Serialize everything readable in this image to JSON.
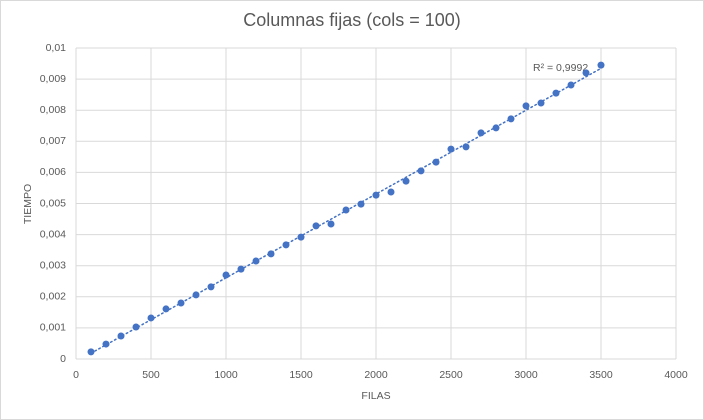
{
  "chart_data": {
    "type": "scatter",
    "title": "Columnas fijas (cols = 100)",
    "x_label": "FILAS",
    "y_label": "TIEMPO",
    "annotation": "R² = 0,9992",
    "trendline": "linear",
    "color": "#4472c4",
    "grid": true,
    "x": [
      100,
      200,
      300,
      400,
      500,
      600,
      700,
      800,
      900,
      1000,
      1100,
      1200,
      1300,
      1400,
      1500,
      1600,
      1700,
      1800,
      1900,
      2000,
      2100,
      2200,
      2300,
      2400,
      2500,
      2600,
      2700,
      2800,
      2900,
      3000,
      3100,
      3200,
      3300,
      3400,
      3500
    ],
    "values": [
      0.00023,
      0.00048,
      0.00074,
      0.00103,
      0.00132,
      0.00161,
      0.0018,
      0.00206,
      0.00232,
      0.0027,
      0.00289,
      0.00315,
      0.00338,
      0.00367,
      0.00392,
      0.00428,
      0.00434,
      0.00479,
      0.00498,
      0.00527,
      0.00537,
      0.00572,
      0.00605,
      0.00633,
      0.00675,
      0.00682,
      0.00727,
      0.00743,
      0.00772,
      0.00814,
      0.00823,
      0.00855,
      0.00881,
      0.0092,
      0.00945
    ],
    "xlim": [
      0,
      4000
    ],
    "xticks": [
      0,
      500,
      1000,
      1500,
      2000,
      2500,
      3000,
      3500,
      4000
    ],
    "ylim": [
      0,
      0.01
    ],
    "yticks": [
      0,
      {
        "value": 0.001,
        "label": "0,001"
      },
      {
        "value": 0.002,
        "label": "0,002"
      },
      {
        "value": 0.003,
        "label": "0,003"
      },
      {
        "value": 0.004,
        "label": "0,004"
      },
      {
        "value": 0.005,
        "label": "0,005"
      },
      {
        "value": 0.006,
        "label": "0,006"
      },
      {
        "value": 0.007,
        "label": "0,007"
      },
      {
        "value": 0.008,
        "label": "0,008"
      },
      {
        "value": 0.009,
        "label": "0,009"
      },
      {
        "value": 0.01,
        "label": "0,01"
      }
    ]
  }
}
